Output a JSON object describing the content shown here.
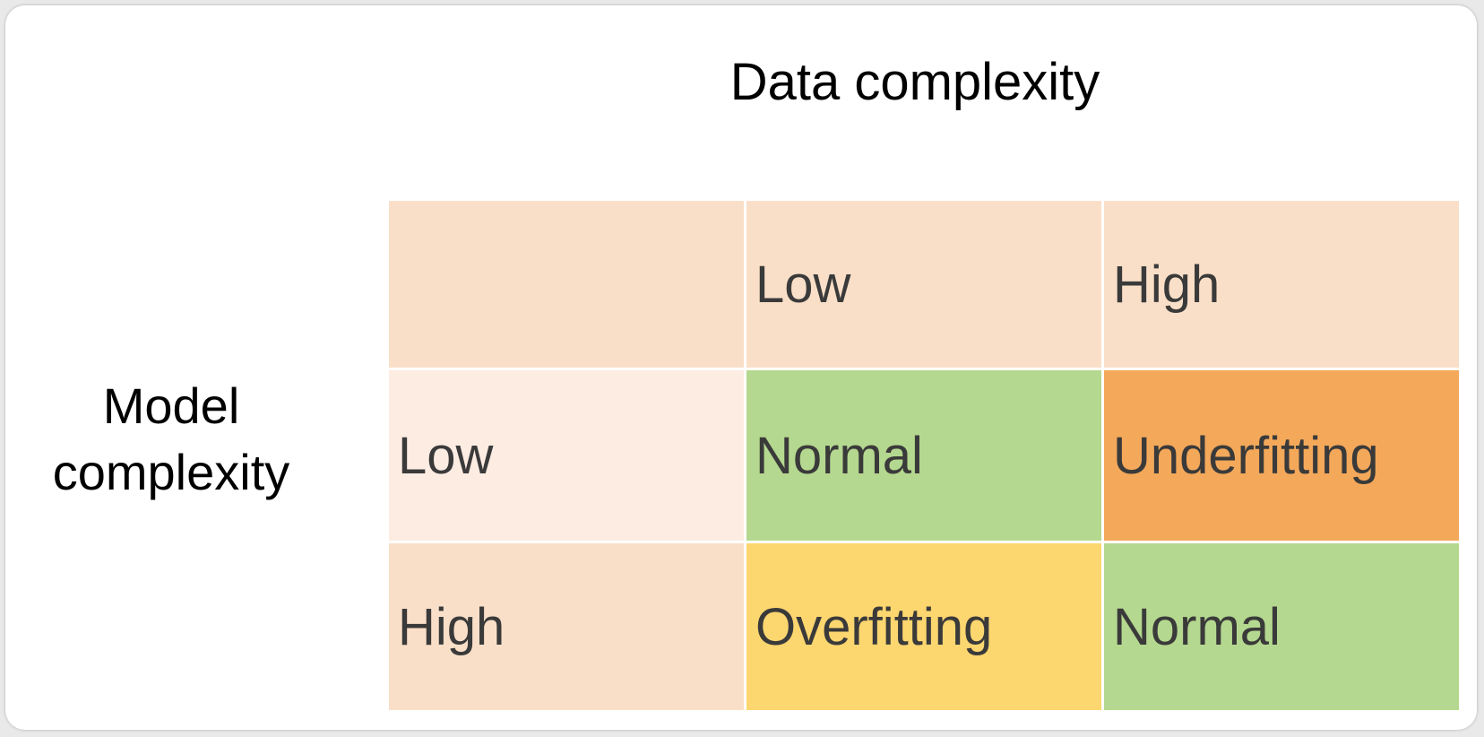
{
  "column_axis_title": "Data complexity",
  "row_axis_title_line1": "Model",
  "row_axis_title_line2": "complexity",
  "column_headers": [
    "",
    "Low",
    "High"
  ],
  "rows": [
    {
      "label": "Low",
      "cells": [
        "Normal",
        "Underfitting"
      ]
    },
    {
      "label": "High",
      "cells": [
        "Overfitting",
        "Normal"
      ]
    }
  ],
  "colors": {
    "header_bg": "#fadfc8",
    "row_low_label_bg": "#fdece2",
    "row_high_label_bg": "#fadfc8",
    "normal": "#b4d88f",
    "underfitting": "#f3a85a",
    "overfitting": "#fcd66f",
    "text": "#3a3a3a"
  }
}
